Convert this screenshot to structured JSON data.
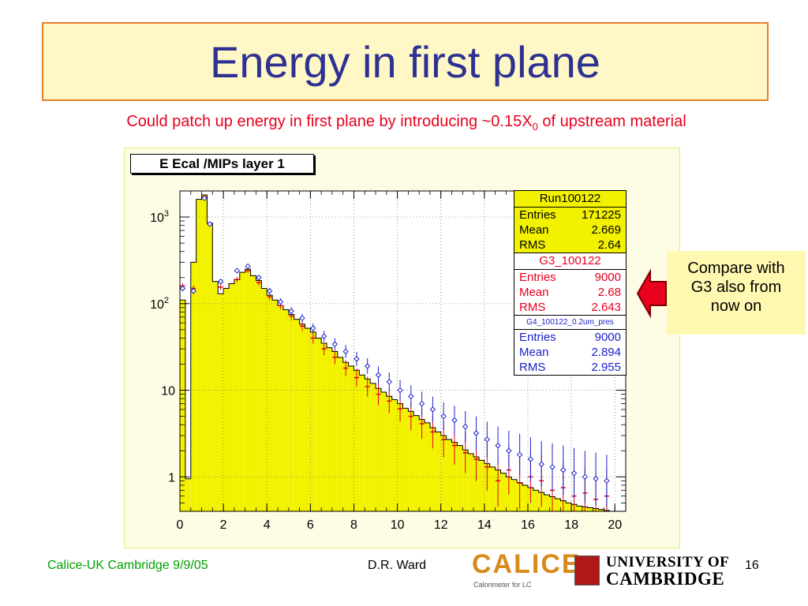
{
  "slide": {
    "title": "Energy in first plane",
    "subtitle_pre": "Could patch up energy in first plane by introducing ~0.15X",
    "subtitle_sub": "0",
    "subtitle_post": " of upstream material",
    "callout": [
      "Compare with",
      "G3 also from",
      "now on"
    ],
    "footer_left": "Calice-UK Cambridge 9/9/05",
    "footer_author": "D.R. Ward",
    "page_number": "16",
    "logo_calice": "CALICE",
    "logo_calice_sub": "Calorimeter for LC",
    "logo_cambridge_line1": "UNIVERSITY OF",
    "logo_cambridge_line2": "CAMBRIDGE"
  },
  "stats": {
    "box1": {
      "name": "Run100122",
      "rows": [
        [
          "Entries",
          "171225"
        ],
        [
          "Mean",
          "2.669"
        ],
        [
          "RMS",
          "2.64"
        ]
      ]
    },
    "box2": {
      "name": "G3_100122",
      "rows": [
        [
          "Entries",
          "9000"
        ],
        [
          "Mean",
          "2.68"
        ],
        [
          "RMS",
          "2.643"
        ]
      ]
    },
    "box3": {
      "name": "G4_100122_0.2um_pres",
      "rows": [
        [
          "Entries",
          "9000"
        ],
        [
          "Mean",
          "2.894"
        ],
        [
          "RMS",
          "2.955"
        ]
      ]
    }
  },
  "colors": {
    "hist_fill": "#f2f200",
    "g3": "#e8001c",
    "g4": "#1a22c8",
    "frame": "#fdfde6"
  },
  "chart_data": {
    "type": "bar",
    "title": "E Ecal /MIPs layer 1",
    "xlim": [
      0,
      20.5
    ],
    "ylim": [
      0.4,
      2000
    ],
    "yscale": "log",
    "x_ticks": [
      0,
      2,
      4,
      6,
      8,
      10,
      12,
      14,
      16,
      18,
      20
    ],
    "x_tick_labels": [
      "0",
      "2",
      "4",
      "6",
      "8",
      "10",
      "12",
      "14",
      "16",
      "18",
      "20"
    ],
    "y_ticks": [
      1,
      10,
      100,
      1000
    ],
    "y_tick_labels": [
      "1",
      "10",
      "10^2",
      "10^3"
    ],
    "grid": true,
    "series": [
      {
        "name": "Run100122",
        "x_centers": [
          0.125,
          0.375,
          0.625,
          0.875,
          1.125,
          1.375,
          1.625,
          1.875,
          2.125,
          2.375,
          2.625,
          2.875,
          3.125,
          3.375,
          3.625,
          3.875,
          4.125,
          4.375,
          4.625,
          4.875,
          5.125,
          5.375,
          5.625,
          5.875,
          6.125,
          6.375,
          6.625,
          6.875,
          7.125,
          7.375,
          7.625,
          7.875,
          8.125,
          8.375,
          8.625,
          8.875,
          9.125,
          9.375,
          9.625,
          9.875,
          10.125,
          10.375,
          10.625,
          10.875,
          11.125,
          11.375,
          11.625,
          11.875,
          12.125,
          12.375,
          12.625,
          12.875,
          13.125,
          13.375,
          13.625,
          13.875,
          14.125,
          14.375,
          14.625,
          14.875,
          15.125,
          15.375,
          15.625,
          15.875,
          16.125,
          16.375,
          16.625,
          16.875,
          17.125,
          17.375,
          17.625,
          17.875,
          18.125,
          18.375,
          18.625,
          18.875,
          19.125,
          19.375,
          19.625,
          19.875,
          20.125,
          20.375
        ],
        "values": [
          110,
          0.95,
          300,
          1600,
          1800,
          850,
          180,
          130,
          150,
          170,
          190,
          230,
          250,
          210,
          185,
          150,
          125,
          110,
          95,
          85,
          75,
          66,
          58,
          52,
          47,
          40,
          35,
          31,
          28,
          24,
          21,
          19,
          17,
          15,
          13.5,
          12,
          10.5,
          9.5,
          8.5,
          7.8,
          7,
          6.2,
          5.7,
          5.1,
          4.6,
          4.2,
          3.7,
          3.3,
          3.0,
          2.7,
          2.5,
          2.3,
          2.05,
          1.85,
          1.7,
          1.55,
          1.42,
          1.3,
          1.2,
          1.1,
          1.0,
          0.93,
          0.86,
          0.8,
          0.75,
          0.7,
          0.66,
          0.62,
          0.59,
          0.56,
          0.53,
          0.5,
          0.48,
          0.46,
          0.45,
          0.44,
          0.43,
          0.42,
          0.41,
          0.4,
          0.4,
          0.4
        ]
      },
      {
        "name": "G3_100122",
        "marker": "cross",
        "x": [
          0.125,
          0.625,
          1.125,
          1.375,
          1.875,
          2.625,
          3.125,
          3.625,
          4.125,
          4.625,
          5.125,
          5.625,
          6.125,
          6.625,
          7.125,
          7.625,
          8.125,
          8.625,
          9.125,
          9.625,
          10.125,
          10.625,
          11.125,
          11.625,
          12.125,
          12.625,
          13.125,
          13.625,
          14.125,
          14.625,
          15.125,
          15.625,
          16.125,
          16.625,
          17.125,
          17.625,
          18.125,
          18.625,
          19.125,
          19.625
        ],
        "y": [
          160,
          150,
          1700,
          820,
          155,
          190,
          240,
          175,
          120,
          95,
          72,
          55,
          40,
          30,
          24,
          18,
          14,
          11,
          9,
          7.5,
          6.1,
          5,
          4.1,
          3.3,
          2.7,
          2.3,
          1.9,
          1.6,
          1.3,
          0.9,
          1.2,
          0.85,
          1.0,
          0.9,
          0.7,
          0.75,
          0.6,
          0.65,
          0.55,
          0.6
        ]
      },
      {
        "name": "G4_100122_0.2um_pres",
        "marker": "diamond",
        "x": [
          0.125,
          0.625,
          1.125,
          1.375,
          1.875,
          2.625,
          3.125,
          3.625,
          4.125,
          4.625,
          5.125,
          5.625,
          6.125,
          6.625,
          7.125,
          7.625,
          8.125,
          8.625,
          9.125,
          9.625,
          10.125,
          10.625,
          11.125,
          11.625,
          12.125,
          12.625,
          13.125,
          13.625,
          14.125,
          14.625,
          15.125,
          15.625,
          16.125,
          16.625,
          17.125,
          17.625,
          18.125,
          18.625,
          19.125,
          19.625
        ],
        "y": [
          150,
          140,
          1650,
          830,
          180,
          240,
          270,
          200,
          140,
          105,
          82,
          68,
          52,
          42,
          34,
          28,
          23,
          19,
          15,
          12.5,
          10,
          8.5,
          7,
          6,
          5,
          4.5,
          3.8,
          3.2,
          2.7,
          2.3,
          2,
          1.8,
          1.6,
          1.4,
          1.3,
          1.2,
          1.1,
          1.0,
          0.95,
          0.9
        ]
      }
    ]
  }
}
